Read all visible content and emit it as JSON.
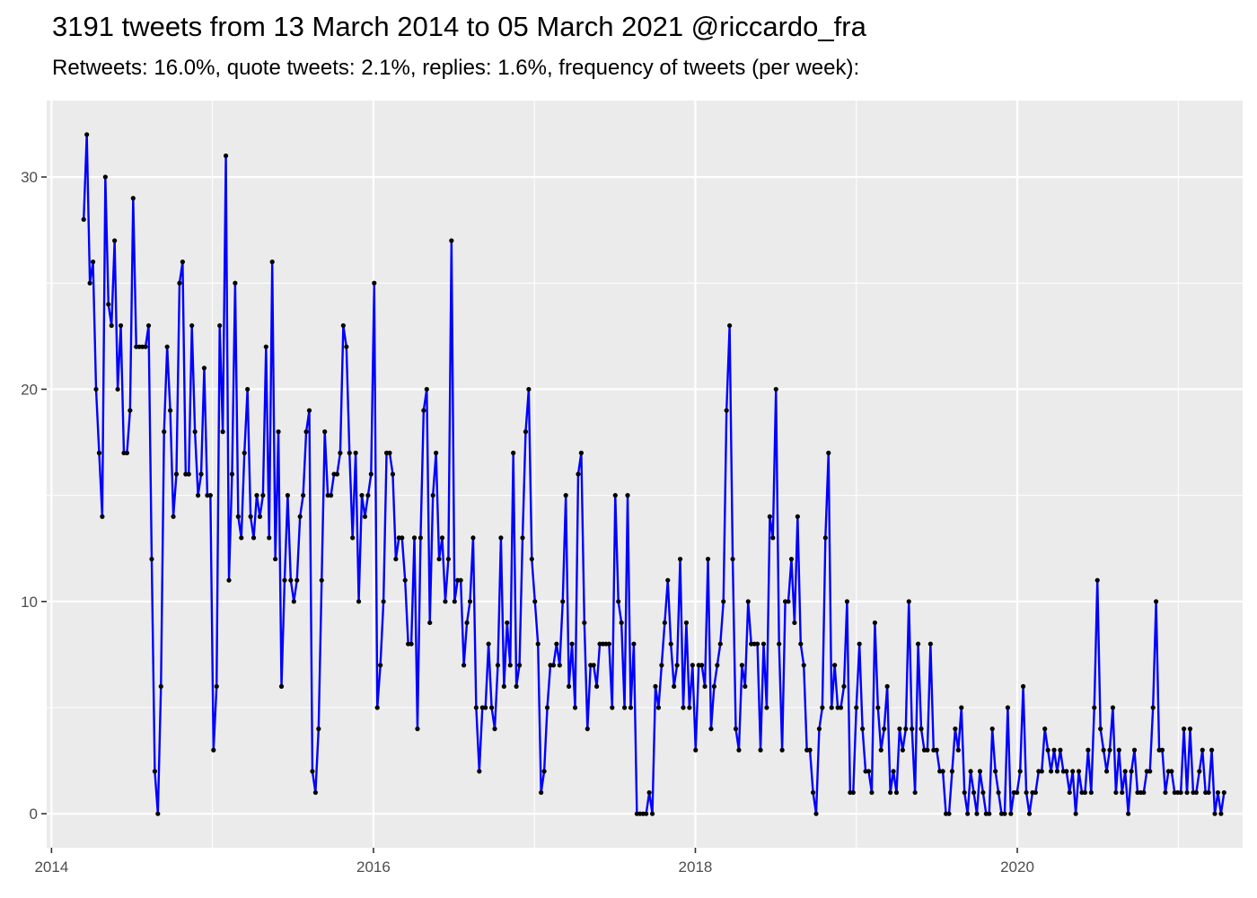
{
  "title": "3191 tweets from 13 March 2014 to 05 March 2021 @riccardo_fra",
  "subtitle": "Retweets: 16.0%, quote tweets: 2.1%, replies: 1.6%, frequency of tweets (per week):",
  "colors": {
    "panel_background": "#ebebeb",
    "grid": "#ffffff",
    "line": "#0000ff",
    "point": "#000000",
    "tick_text": "#4d4d4d"
  },
  "chart_data": {
    "type": "line",
    "title": "3191 tweets from 13 March 2014 to 05 March 2021 @riccardo_fra",
    "subtitle": "Retweets: 16.0%, quote tweets: 2.1%, replies: 1.6%, frequency of tweets (per week):",
    "xlabel": "",
    "ylabel": "",
    "xlim": [
      2013.97,
      2021.4
    ],
    "ylim": [
      -1.6,
      33.6
    ],
    "x_ticks": [
      2014,
      2016,
      2018,
      2020
    ],
    "x_tick_labels": [
      "2014",
      "2016",
      "2018",
      "2020"
    ],
    "y_ticks": [
      0,
      10,
      20,
      30
    ],
    "y_tick_labels": [
      "0",
      "10",
      "20",
      "30"
    ],
    "grid": true,
    "legend": "none",
    "markers": true,
    "series": [
      {
        "start_x": 2014.2,
        "x_step": 0.0192,
        "values": [
          28,
          32,
          25,
          26,
          20,
          17,
          14,
          30,
          24,
          23,
          27,
          20,
          23,
          17,
          17,
          19,
          29,
          22,
          22,
          22,
          22,
          23,
          12,
          2,
          0,
          6,
          18,
          22,
          19,
          14,
          16,
          25,
          26,
          16,
          16,
          23,
          18,
          15,
          16,
          21,
          15,
          15,
          3,
          6,
          23,
          18,
          31,
          11,
          16,
          25,
          14,
          13,
          17,
          20,
          14,
          13,
          15,
          14,
          15,
          22,
          13,
          26,
          12,
          18,
          6,
          11,
          15,
          11,
          10,
          11,
          14,
          15,
          18,
          19,
          2,
          1,
          4,
          11,
          18,
          15,
          15,
          16,
          16,
          17,
          23,
          22,
          17,
          13,
          17,
          10,
          15,
          14,
          15,
          16,
          25,
          5,
          7,
          10,
          17,
          17,
          16,
          12,
          13,
          13,
          11,
          8,
          8,
          13,
          4,
          13,
          19,
          20,
          9,
          15,
          17,
          12,
          13,
          10,
          12,
          27,
          10,
          11,
          11,
          7,
          9,
          10,
          13,
          5,
          2,
          5,
          5,
          8,
          5,
          4,
          7,
          13,
          6,
          9,
          7,
          17,
          6,
          7,
          13,
          18,
          20,
          12,
          10,
          8,
          1,
          2,
          5,
          7,
          7,
          8,
          7,
          10,
          15,
          6,
          8,
          5,
          16,
          17,
          9,
          4,
          7,
          7,
          6,
          8,
          8,
          8,
          8,
          5,
          15,
          10,
          9,
          5,
          15,
          5,
          8,
          0,
          0,
          0,
          0,
          1,
          0,
          6,
          5,
          7,
          9,
          11,
          8,
          6,
          7,
          12,
          5,
          9,
          5,
          7,
          3,
          7,
          7,
          6,
          12,
          4,
          6,
          7,
          8,
          10,
          19,
          23,
          12,
          4,
          3,
          7,
          6,
          10,
          8,
          8,
          8,
          3,
          8,
          5,
          14,
          13,
          20,
          8,
          3,
          10,
          10,
          12,
          9,
          14,
          8,
          7,
          3,
          3,
          1,
          0,
          4,
          5,
          13,
          17,
          5,
          7,
          5,
          5,
          6,
          10,
          1,
          1,
          5,
          8,
          4,
          2,
          2,
          1,
          9,
          5,
          3,
          4,
          6,
          1,
          2,
          1,
          4,
          3,
          4,
          10,
          4,
          1,
          8,
          4,
          3,
          3,
          8,
          3,
          3,
          2,
          2,
          0,
          0,
          2,
          4,
          3,
          5,
          1,
          0,
          2,
          1,
          0,
          2,
          1,
          0,
          0,
          4,
          2,
          1,
          0,
          0,
          5,
          0,
          1,
          1,
          2,
          6,
          1,
          0,
          1,
          1,
          2,
          2,
          4,
          3,
          2,
          3,
          2,
          3,
          2,
          2,
          1,
          2,
          0,
          2,
          1,
          1,
          3,
          1,
          5,
          11,
          4,
          3,
          2,
          3,
          5,
          1,
          3,
          1,
          2,
          0,
          2,
          3,
          1,
          1,
          1,
          2,
          2,
          5,
          10,
          3,
          3,
          1,
          2,
          2,
          1,
          1,
          1,
          4,
          1,
          4,
          1,
          1,
          2,
          3,
          1,
          1,
          3,
          0,
          1,
          0,
          1
        ]
      }
    ]
  }
}
